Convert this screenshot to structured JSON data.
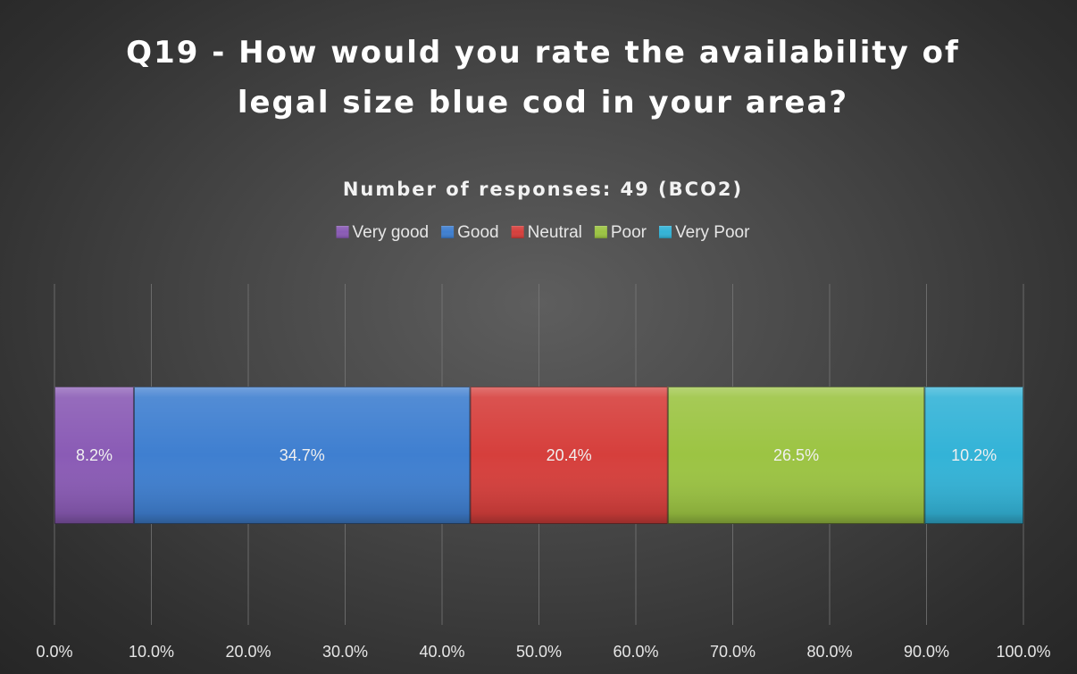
{
  "chart_data": {
    "type": "bar",
    "orientation": "horizontal-stacked-100",
    "title": "Q19 - How would you rate the availability of legal size blue cod in your area?",
    "title_lines": [
      "Q19 - How would you rate the availability of",
      "legal size blue cod in your area?"
    ],
    "subtitle": "Number of responses: 49 (BCO2)",
    "xlabel": "",
    "ylabel": "",
    "xlim": [
      0,
      100
    ],
    "x_ticks": [
      "0.0%",
      "10.0%",
      "20.0%",
      "30.0%",
      "40.0%",
      "50.0%",
      "60.0%",
      "70.0%",
      "80.0%",
      "90.0%",
      "100.0%"
    ],
    "grid": "vertical",
    "legend_position": "top",
    "series": [
      {
        "name": "Very good",
        "value": 8.2,
        "label": "8.2%",
        "color": "#8a5bb5"
      },
      {
        "name": "Good",
        "value": 34.7,
        "label": "34.7%",
        "color": "#3f7fd0"
      },
      {
        "name": "Neutral",
        "value": 20.4,
        "label": "20.4%",
        "color": "#d63f3c"
      },
      {
        "name": "Poor",
        "value": 26.5,
        "label": "26.5%",
        "color": "#9cc443"
      },
      {
        "name": "Very Poor",
        "value": 10.2,
        "label": "10.2%",
        "color": "#33b3d7"
      }
    ]
  }
}
